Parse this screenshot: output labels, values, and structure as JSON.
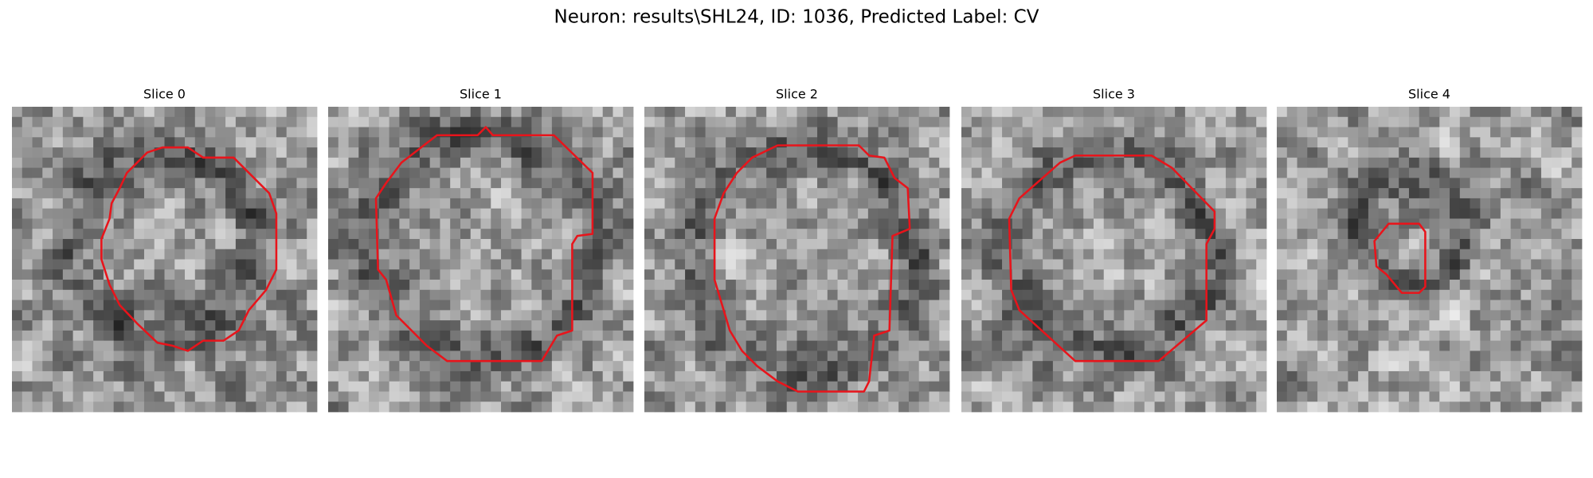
{
  "title": "Neuron: results\\SHL24, ID: 1036, Predicted Label: CV",
  "panels": [
    {
      "title": "Slice 0"
    },
    {
      "title": "Slice 1"
    },
    {
      "title": "Slice 2"
    },
    {
      "title": "Slice 3"
    },
    {
      "title": "Slice 4"
    }
  ]
}
